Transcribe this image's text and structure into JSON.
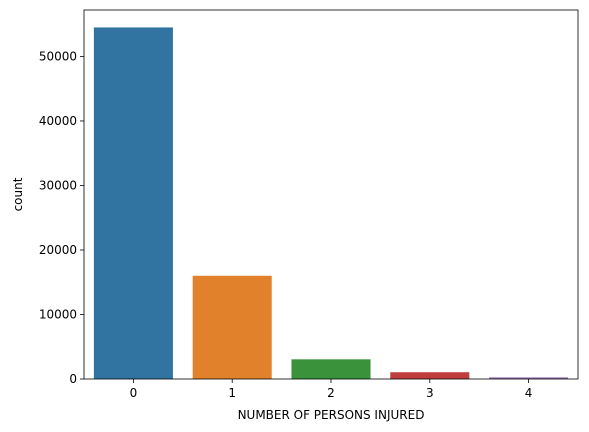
{
  "chart_data": {
    "type": "bar",
    "title": "",
    "xlabel": "NUMBER OF PERSONS INJURED",
    "ylabel": "count",
    "categories": [
      "0",
      "1",
      "2",
      "3",
      "4"
    ],
    "values": [
      54500,
      16000,
      3050,
      1050,
      250
    ],
    "colors": [
      "#3274a1",
      "#e1812c",
      "#3a923a",
      "#c03d3e",
      "#9372b2"
    ],
    "ylim": [
      0,
      57200
    ],
    "yticks": [
      0,
      10000,
      20000,
      30000,
      40000,
      50000
    ],
    "ytick_labels": [
      "0",
      "10000",
      "20000",
      "30000",
      "40000",
      "50000"
    ],
    "grid": false,
    "legend": "none"
  }
}
